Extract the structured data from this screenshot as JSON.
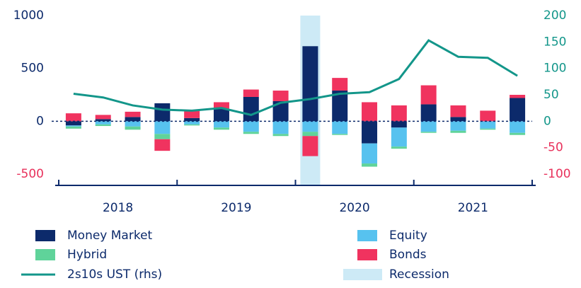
{
  "chart_data": {
    "type": "bar",
    "stacked": true,
    "categories": [
      null,
      null,
      null,
      null,
      null,
      null,
      null,
      null,
      null,
      null,
      null,
      null,
      null,
      null,
      null,
      null
    ],
    "x_groups": [
      "2018",
      "2019",
      "2020",
      "2021"
    ],
    "ylim": [
      -500,
      1000
    ],
    "yticks": [
      1000,
      500,
      0,
      -500
    ],
    "y2lim": [
      -100,
      200
    ],
    "y2ticks": [
      200,
      150,
      100,
      50,
      0,
      -50,
      -100
    ],
    "negative_tick_color": "#e8315b",
    "series": [
      {
        "name": "Money Market",
        "color": "#0c2a6b",
        "values": [
          -40,
          20,
          40,
          170,
          30,
          120,
          230,
          190,
          710,
          290,
          -210,
          -60,
          160,
          40,
          0,
          220
        ]
      },
      {
        "name": "Equity",
        "color": "#57c2ef",
        "values": [
          -10,
          -30,
          -50,
          -120,
          -30,
          -60,
          -100,
          -120,
          -100,
          -120,
          -190,
          -180,
          -100,
          -90,
          -70,
          -110
        ]
      },
      {
        "name": "Hybrid",
        "color": "#5fd39a",
        "values": [
          -20,
          -15,
          -30,
          -50,
          -10,
          -20,
          -20,
          -20,
          -40,
          -10,
          -30,
          -20,
          -10,
          -20,
          -10,
          -20
        ]
      },
      {
        "name": "Bonds",
        "color": "#f0335f",
        "values": [
          75,
          40,
          50,
          -110,
          70,
          60,
          70,
          100,
          -190,
          120,
          180,
          150,
          180,
          110,
          100,
          30
        ]
      },
      {
        "name": "2s10s UST (rhs)",
        "type": "line",
        "axis": "y2",
        "color": "#13968a",
        "values": [
          52,
          45,
          30,
          22,
          20,
          25,
          12,
          35,
          42,
          52,
          55,
          80,
          153,
          122,
          120,
          86
        ]
      }
    ],
    "recession": {
      "name": "Recession",
      "color": "#cdeaf6",
      "quarter_index": 8
    }
  }
}
